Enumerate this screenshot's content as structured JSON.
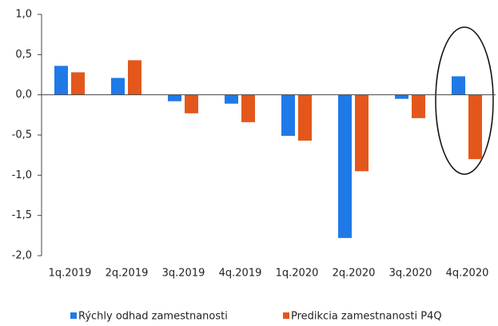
{
  "chart_data": {
    "type": "bar",
    "categories": [
      "1q.2019",
      "2q.2019",
      "3q.2019",
      "4q.2019",
      "1q.2020",
      "2q.2020",
      "3q.2020",
      "4q.2020"
    ],
    "series": [
      {
        "name": "Rýchly odhad zamestnanosti",
        "color": "#1f7ae8",
        "values": [
          0.36,
          0.21,
          -0.08,
          -0.11,
          -0.51,
          -1.78,
          -0.05,
          0.23
        ]
      },
      {
        "name": "Predikcia zamestnanosti P4Q",
        "color": "#e4571c",
        "values": [
          0.28,
          0.43,
          -0.23,
          -0.34,
          -0.57,
          -0.95,
          -0.29,
          -0.8
        ]
      }
    ],
    "ylim": [
      -2,
      1
    ],
    "yticks": [
      {
        "value": 1,
        "label": "1,0"
      },
      {
        "value": 0.5,
        "label": "0,5"
      },
      {
        "value": 0,
        "label": "0,0"
      },
      {
        "value": -0.5,
        "label": "-0,5"
      },
      {
        "value": -1,
        "label": "-1,0"
      },
      {
        "value": -1.5,
        "label": "-1,5"
      },
      {
        "value": -2,
        "label": "-2,0"
      }
    ],
    "grid": false,
    "legend": "bottom"
  }
}
